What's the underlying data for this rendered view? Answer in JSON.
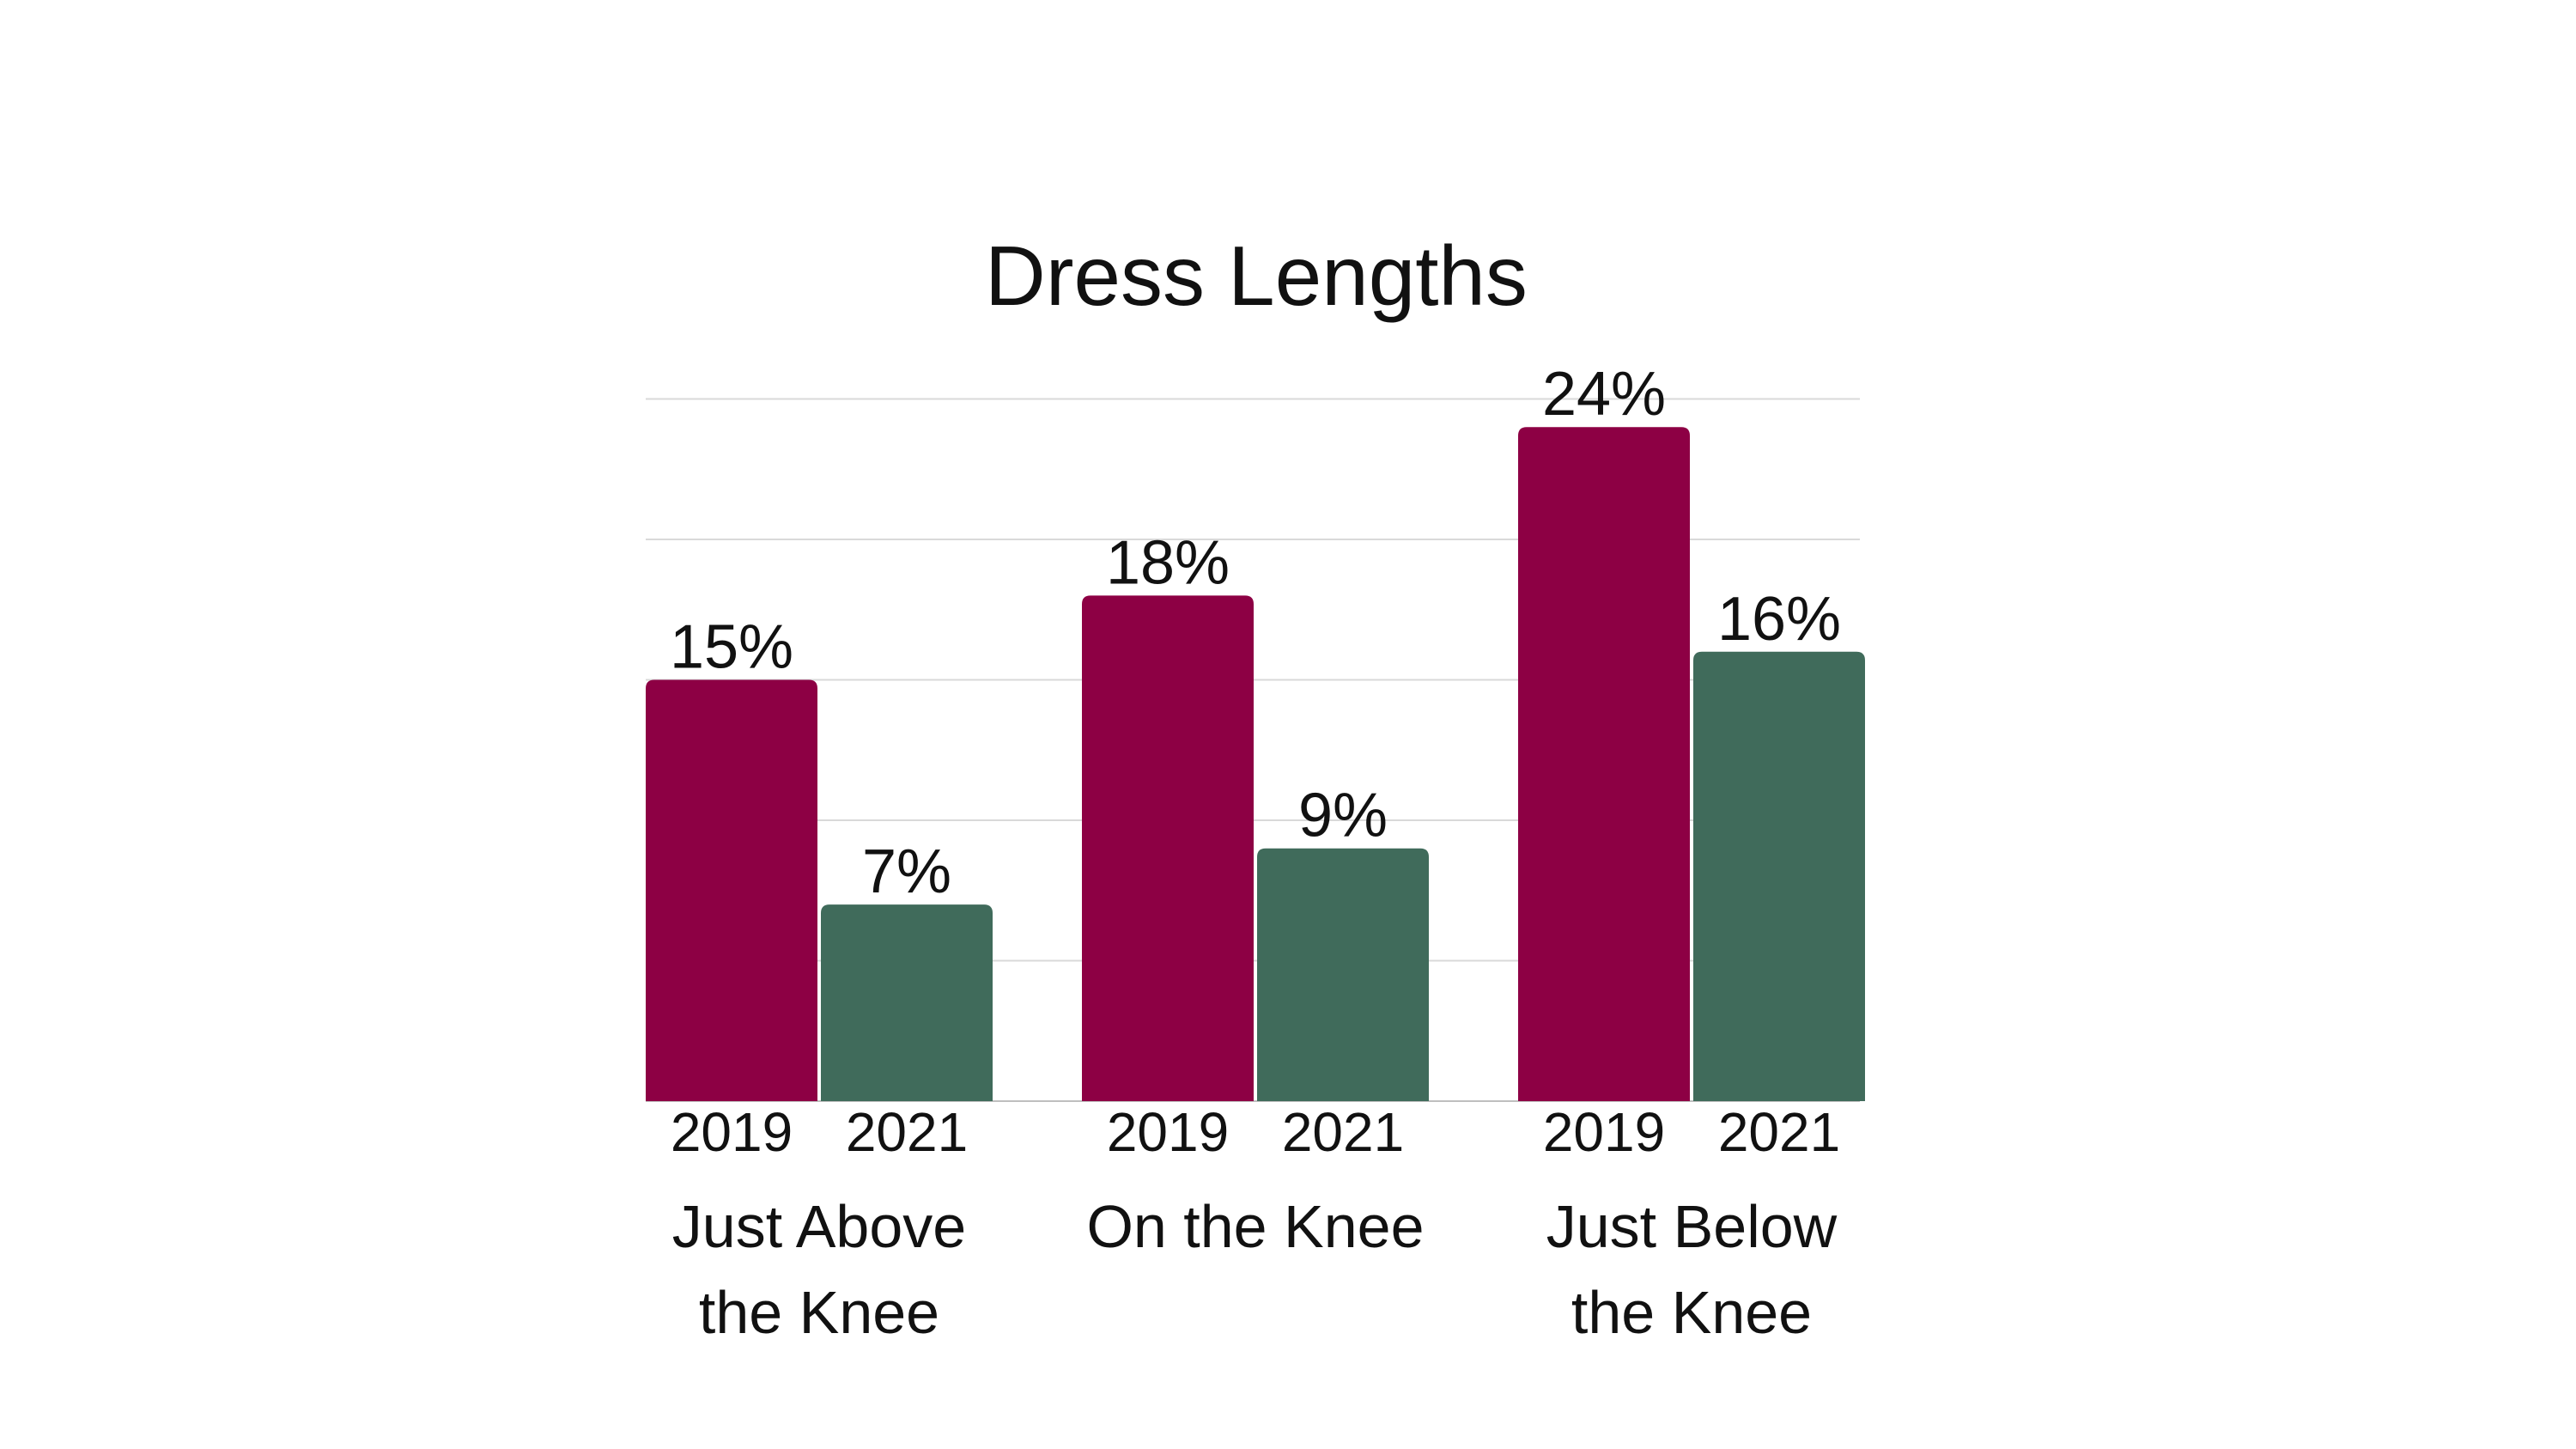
{
  "chart_data": {
    "type": "bar",
    "title": "Dress Lengths",
    "xlabel": "",
    "ylabel": "",
    "ylim": [
      0,
      25
    ],
    "grid": true,
    "legend": "none",
    "categories": [
      "Just Above the Knee",
      "On the Knee",
      "Just Below the Knee"
    ],
    "category_lines": [
      [
        "Just Above",
        "the Knee"
      ],
      [
        "On the Knee"
      ],
      [
        "Just Below",
        "the Knee"
      ]
    ],
    "series": [
      {
        "name": "2019",
        "values": [
          15,
          18,
          24
        ],
        "labels": [
          "15%",
          "18%",
          "24%"
        ],
        "color": "#8d0044"
      },
      {
        "name": "2021",
        "values": [
          7,
          9,
          16
        ],
        "labels": [
          "7%",
          "9%",
          "16%"
        ],
        "color": "#406b5b"
      }
    ]
  }
}
